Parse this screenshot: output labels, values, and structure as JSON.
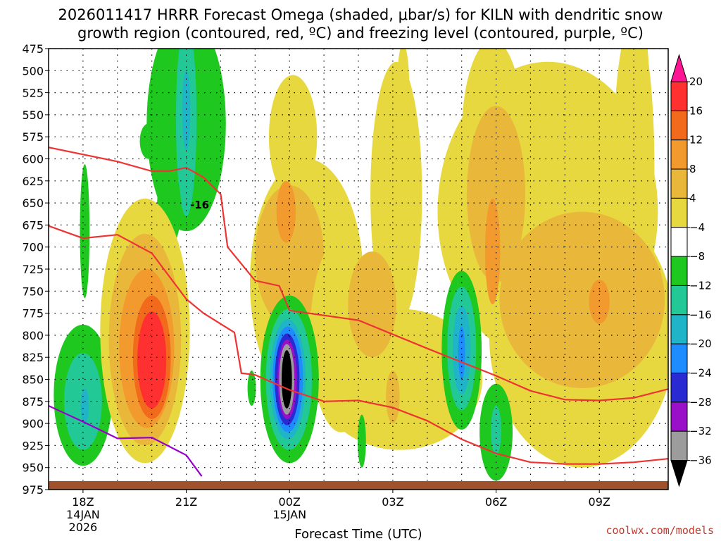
{
  "colors": {
    "freezing": "#ee3333",
    "dgz": "#9900cc",
    "ground": "#a0522d"
  },
  "chart_data": {
    "type": "contour",
    "title_line1": "2026011417 HRRR Forecast Omega (shaded, μbar/s) for KILN with dendritic snow",
    "title_line2": "growth region (contoured, red, ºC) and freezing level (contoured, purple, ºC)",
    "xlabel": "Forecast Time (UTC)",
    "credit": "coolwx.com/models",
    "x_range_hours": [
      -1,
      17
    ],
    "y_range_mb": [
      975,
      475
    ],
    "y_ticks": [
      475,
      500,
      525,
      550,
      575,
      600,
      625,
      650,
      675,
      700,
      725,
      750,
      775,
      800,
      825,
      850,
      875,
      900,
      925,
      950,
      975
    ],
    "x_ticks": [
      {
        "h": 0,
        "label": "18Z",
        "sub1": "14JAN",
        "sub2": "2026"
      },
      {
        "h": 3,
        "label": "21Z",
        "sub1": "",
        "sub2": ""
      },
      {
        "h": 6,
        "label": "00Z",
        "sub1": "15JAN",
        "sub2": ""
      },
      {
        "h": 9,
        "label": "03Z",
        "sub1": "",
        "sub2": ""
      },
      {
        "h": 12,
        "label": "06Z",
        "sub1": "",
        "sub2": ""
      },
      {
        "h": 15,
        "label": "09Z",
        "sub1": "",
        "sub2": ""
      }
    ],
    "colorbar": {
      "labels": [
        "20",
        "16",
        "12",
        "8",
        "4",
        "−4",
        "−8",
        "−12",
        "−16",
        "−20",
        "−24",
        "−28",
        "−32",
        "−36"
      ],
      "colors": [
        "#ff3030",
        "#f26a1b",
        "#f29a2e",
        "#e9b83a",
        "#e8d840",
        "#ffffff",
        "#1ec81e",
        "#22c896",
        "#20b4c8",
        "#1e8cff",
        "#2a2ad2",
        "#9a10c8",
        "#9c9c9c",
        "#000000"
      ],
      "top_arrow_color": "#ff1493",
      "bottom_arrow_color": "#000000"
    },
    "contour_label": "-16",
    "freezing_level_line": [
      [
        -1,
        880
      ],
      [
        0,
        898
      ],
      [
        1,
        917
      ],
      [
        2,
        916
      ],
      [
        3,
        936
      ],
      [
        3.45,
        960
      ]
    ],
    "dgz_upper_line": [
      [
        -1,
        587
      ],
      [
        1,
        603
      ],
      [
        2,
        614
      ],
      [
        2.5,
        614
      ],
      [
        3,
        610
      ],
      [
        3.5,
        621
      ],
      [
        4,
        640
      ],
      [
        4.2,
        700
      ],
      [
        5,
        738
      ],
      [
        5.7,
        744
      ],
      [
        6,
        772
      ],
      [
        8,
        783
      ],
      [
        10,
        815
      ],
      [
        12,
        846
      ],
      [
        13,
        863
      ],
      [
        14,
        873
      ],
      [
        15,
        874
      ],
      [
        16,
        871
      ],
      [
        17,
        861
      ]
    ],
    "dgz_lower_line": [
      [
        -1,
        676
      ],
      [
        0,
        690
      ],
      [
        1,
        686
      ],
      [
        2,
        707
      ],
      [
        3,
        759
      ],
      [
        3.5,
        775
      ],
      [
        4.4,
        797
      ],
      [
        4.6,
        843
      ],
      [
        5,
        845
      ],
      [
        6,
        862
      ],
      [
        7,
        875
      ],
      [
        8,
        874
      ],
      [
        9,
        882
      ],
      [
        10,
        897
      ],
      [
        11,
        918
      ],
      [
        12,
        934
      ],
      [
        13,
        944
      ],
      [
        14,
        946
      ],
      [
        15,
        946
      ],
      [
        16,
        944
      ],
      [
        17,
        940
      ]
    ],
    "omega_blobs": [
      {
        "h": 3.0,
        "mb": 560,
        "rh": 1.15,
        "rmb": 122,
        "val": -8
      },
      {
        "h": 3.0,
        "mb": 555,
        "rh": 0.3,
        "rmb": 110,
        "val": -12
      },
      {
        "h": 3.0,
        "mb": 545,
        "rh": 0.12,
        "rmb": 45,
        "val": -16
      },
      {
        "h": 2.5,
        "mb": 655,
        "rh": 0.35,
        "rmb": 45,
        "val": -8
      },
      {
        "h": 1.9,
        "mb": 580,
        "rh": 0.25,
        "rmb": 20,
        "val": -8
      },
      {
        "h": 0.05,
        "mb": 682,
        "rh": 0.14,
        "rmb": 76,
        "val": -8
      },
      {
        "h": 0.0,
        "mb": 868,
        "rh": 0.85,
        "rmb": 80,
        "val": -8
      },
      {
        "h": 0.0,
        "mb": 875,
        "rh": 0.55,
        "rmb": 55,
        "val": -12
      },
      {
        "h": 0.05,
        "mb": 880,
        "rh": 0.12,
        "rmb": 20,
        "val": -16
      },
      {
        "h": 1.8,
        "mb": 795,
        "rh": 1.3,
        "rmb": 150,
        "val": 4
      },
      {
        "h": 1.8,
        "mb": 805,
        "rh": 1.05,
        "rmb": 120,
        "val": 8
      },
      {
        "h": 1.85,
        "mb": 815,
        "rh": 0.8,
        "rmb": 90,
        "val": 12
      },
      {
        "h": 2.0,
        "mb": 825,
        "rh": 0.55,
        "rmb": 70,
        "val": 16
      },
      {
        "h": 2.0,
        "mb": 828,
        "rh": 0.42,
        "rmb": 55,
        "val": 20
      },
      {
        "h": 6.5,
        "mb": 740,
        "rh": 1.65,
        "rmb": 140,
        "val": 4
      },
      {
        "h": 6.1,
        "mb": 575,
        "rh": 0.7,
        "rmb": 70,
        "val": 4
      },
      {
        "h": 6.0,
        "mb": 710,
        "rh": 1.0,
        "rmb": 80,
        "val": 8
      },
      {
        "h": 5.9,
        "mb": 660,
        "rh": 0.28,
        "rmb": 35,
        "val": 12
      },
      {
        "h": 9.2,
        "mb": 850,
        "rh": 2.4,
        "rmb": 80,
        "val": 4
      },
      {
        "h": 9.1,
        "mb": 640,
        "rh": 0.75,
        "rmb": 150,
        "val": 4
      },
      {
        "h": 9.3,
        "mb": 520,
        "rh": 0.18,
        "rmb": 50,
        "val": 4
      },
      {
        "h": 7.5,
        "mb": 800,
        "rh": 0.9,
        "rmb": 110,
        "val": 4
      },
      {
        "h": 8.4,
        "mb": 765,
        "rh": 0.7,
        "rmb": 60,
        "val": 8
      },
      {
        "h": 9.0,
        "mb": 870,
        "rh": 0.2,
        "rmb": 30,
        "val": 8
      },
      {
        "h": 6.0,
        "mb": 850,
        "rh": 0.85,
        "rmb": 95,
        "val": -8
      },
      {
        "h": 5.98,
        "mb": 850,
        "rh": 0.67,
        "rmb": 80,
        "val": -12
      },
      {
        "h": 5.95,
        "mb": 850,
        "rh": 0.52,
        "rmb": 68,
        "val": -16
      },
      {
        "h": 5.95,
        "mb": 850,
        "rh": 0.44,
        "rmb": 60,
        "val": -20
      },
      {
        "h": 5.93,
        "mb": 850,
        "rh": 0.36,
        "rmb": 52,
        "val": -24
      },
      {
        "h": 5.93,
        "mb": 850,
        "rh": 0.28,
        "rmb": 45,
        "val": -28
      },
      {
        "h": 5.92,
        "mb": 850,
        "rh": 0.22,
        "rmb": 40,
        "val": -32
      },
      {
        "h": 5.92,
        "mb": 850,
        "rh": 0.15,
        "rmb": 33,
        "val": -36
      },
      {
        "h": 4.9,
        "mb": 860,
        "rh": 0.12,
        "rmb": 20,
        "val": -8
      },
      {
        "h": 8.1,
        "mb": 920,
        "rh": 0.12,
        "rmb": 30,
        "val": -8
      },
      {
        "h": 13.5,
        "mb": 660,
        "rh": 3.2,
        "rmb": 170,
        "val": 4
      },
      {
        "h": 11.9,
        "mb": 575,
        "rh": 0.9,
        "rmb": 110,
        "val": 4
      },
      {
        "h": 11.8,
        "mb": 515,
        "rh": 0.4,
        "rmb": 40,
        "val": 4
      },
      {
        "h": 16.0,
        "mb": 610,
        "rh": 0.6,
        "rmb": 170,
        "val": 4
      },
      {
        "h": 16.3,
        "mb": 520,
        "rh": 0.15,
        "rmb": 60,
        "val": 4
      },
      {
        "h": 14.5,
        "mb": 800,
        "rh": 2.7,
        "rmb": 150,
        "val": 4
      },
      {
        "h": 14.5,
        "mb": 760,
        "rh": 2.4,
        "rmb": 100,
        "val": 8
      },
      {
        "h": 12.0,
        "mb": 640,
        "rh": 0.85,
        "rmb": 100,
        "val": 8
      },
      {
        "h": 11.9,
        "mb": 705,
        "rh": 0.22,
        "rmb": 60,
        "val": 12
      },
      {
        "h": 15.0,
        "mb": 762,
        "rh": 0.3,
        "rmb": 25,
        "val": 12
      },
      {
        "h": 11.0,
        "mb": 817,
        "rh": 0.58,
        "rmb": 90,
        "val": -8
      },
      {
        "h": 11.0,
        "mb": 815,
        "rh": 0.42,
        "rmb": 70,
        "val": -12
      },
      {
        "h": 11.0,
        "mb": 817,
        "rh": 0.26,
        "rmb": 50,
        "val": -16
      },
      {
        "h": 11.0,
        "mb": 820,
        "rh": 0.1,
        "rmb": 30,
        "val": -20
      },
      {
        "h": 12.0,
        "mb": 910,
        "rh": 0.48,
        "rmb": 55,
        "val": -8
      },
      {
        "h": 12.0,
        "mb": 908,
        "rh": 0.15,
        "rmb": 28,
        "val": -12
      }
    ]
  }
}
